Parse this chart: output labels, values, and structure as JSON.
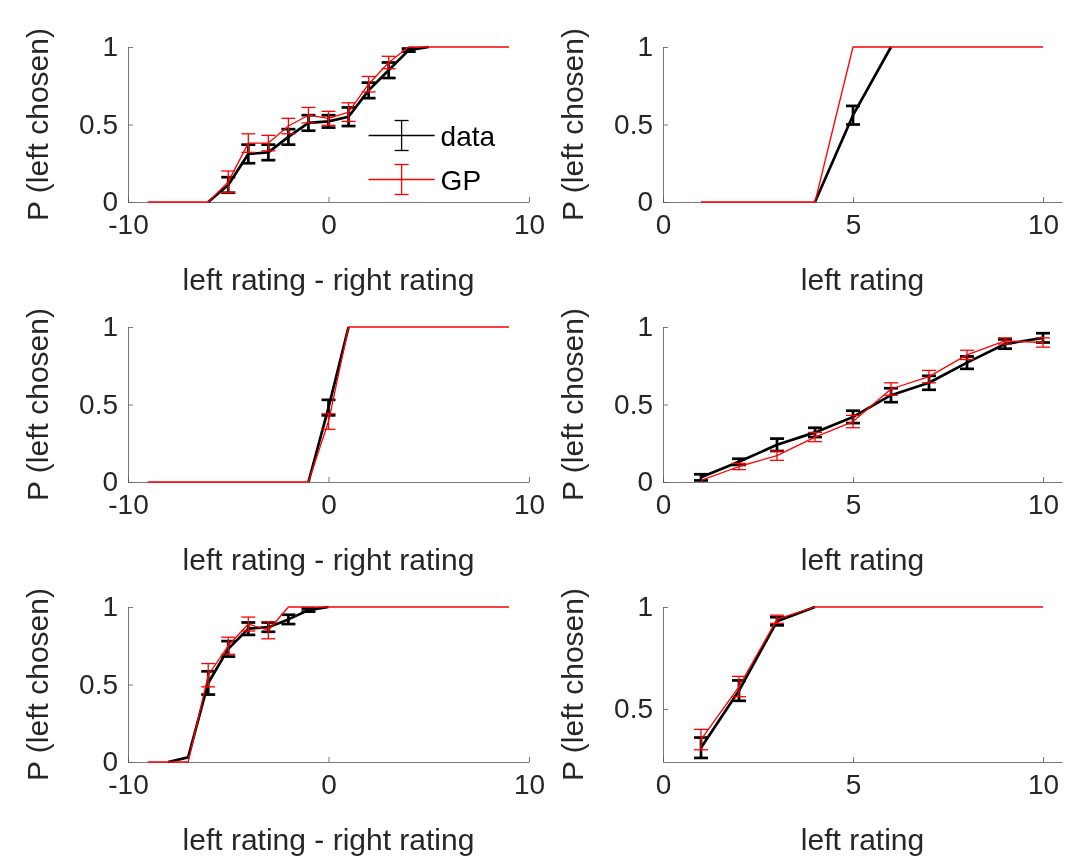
{
  "chart_data": [
    {
      "type": "line",
      "xlabel": "left rating - right rating",
      "ylabel": "P (left chosen)",
      "x": [
        -9,
        -8,
        -7,
        -6,
        -5,
        -4,
        -3,
        -2,
        -1,
        0,
        1,
        2,
        3,
        4,
        5,
        6,
        7,
        8,
        9
      ],
      "xlim": [
        -10,
        10
      ],
      "xticks": [
        -10,
        0,
        10
      ],
      "ylim": [
        0,
        1
      ],
      "yticks": [
        0,
        0.5,
        1
      ],
      "legend": "right",
      "marker": "none",
      "line_style": "solid",
      "series": [
        {
          "name": "data",
          "color": "#000000",
          "values": [
            null,
            null,
            null,
            0,
            0.11,
            0.31,
            0.32,
            0.42,
            0.51,
            0.52,
            0.55,
            0.72,
            0.85,
            0.98,
            1,
            null,
            null,
            null,
            null
          ],
          "errors": [
            null,
            null,
            null,
            null,
            0.05,
            0.06,
            0.05,
            0.05,
            0.05,
            0.04,
            0.06,
            0.05,
            0.05,
            0.01,
            null,
            null,
            null,
            null,
            null
          ]
        },
        {
          "name": "GP",
          "color": "#ff0000",
          "values": [
            0,
            0,
            0,
            0,
            0.13,
            0.38,
            0.38,
            0.49,
            0.56,
            0.54,
            0.58,
            0.76,
            0.9,
            1,
            1,
            1,
            1,
            1,
            1
          ],
          "errors": [
            null,
            null,
            null,
            null,
            0.07,
            0.06,
            0.05,
            0.05,
            0.05,
            0.045,
            0.06,
            0.05,
            0.04,
            null,
            null,
            null,
            null,
            null,
            null
          ]
        }
      ]
    },
    {
      "type": "line",
      "xlabel": "left rating",
      "ylabel": "P (left chosen)",
      "x": [
        1,
        2,
        3,
        4,
        5,
        6,
        7,
        8,
        9,
        10
      ],
      "xlim": [
        0,
        10.5
      ],
      "xticks": [
        0,
        5,
        10
      ],
      "ylim": [
        0,
        1
      ],
      "yticks": [
        0,
        0.5,
        1
      ],
      "marker": "none",
      "line_style": "solid",
      "series": [
        {
          "color": "#000000",
          "values": [
            null,
            null,
            null,
            0,
            0.56,
            1,
            null,
            null,
            null,
            null
          ],
          "errors": [
            null,
            null,
            null,
            null,
            0.06,
            null,
            null,
            null,
            null,
            null
          ]
        },
        {
          "color": "#ff0000",
          "values": [
            0,
            0,
            0,
            0,
            1,
            1,
            1,
            1,
            1,
            1
          ]
        }
      ]
    },
    {
      "type": "line",
      "xlabel": "left rating - right rating",
      "ylabel": "P (left chosen)",
      "x": [
        -9,
        -8,
        -7,
        -6,
        -5,
        -4,
        -3,
        -2,
        -1,
        0,
        1,
        2,
        3,
        4,
        5,
        6,
        7,
        8,
        9
      ],
      "xlim": [
        -10,
        10
      ],
      "xticks": [
        -10,
        0,
        10
      ],
      "ylim": [
        0,
        1
      ],
      "yticks": [
        0,
        0.5,
        1
      ],
      "marker": "none",
      "line_style": "solid",
      "series": [
        {
          "color": "#000000",
          "values": [
            null,
            null,
            null,
            null,
            null,
            null,
            null,
            null,
            0,
            0.48,
            1,
            null,
            null,
            null,
            null,
            null,
            null,
            null,
            null
          ],
          "errors": [
            null,
            null,
            null,
            null,
            null,
            null,
            null,
            null,
            null,
            0.05,
            null,
            null,
            null,
            null,
            null,
            null,
            null,
            null,
            null
          ]
        },
        {
          "color": "#ff0000",
          "values": [
            0,
            0,
            0,
            0,
            0,
            0,
            0,
            0,
            0,
            0.39,
            1,
            1,
            1,
            1,
            1,
            1,
            1,
            1,
            1
          ],
          "errors": [
            null,
            null,
            null,
            null,
            null,
            null,
            null,
            null,
            null,
            0.05,
            null,
            null,
            null,
            null,
            null,
            null,
            null,
            null,
            null
          ]
        }
      ]
    },
    {
      "type": "line",
      "xlabel": "left rating",
      "ylabel": "P (left chosen)",
      "x": [
        1,
        2,
        3,
        4,
        5,
        6,
        7,
        8,
        9,
        10
      ],
      "xlim": [
        0,
        10.5
      ],
      "xticks": [
        0,
        5,
        10
      ],
      "ylim": [
        0,
        1
      ],
      "yticks": [
        0,
        0.5,
        1
      ],
      "marker": "none",
      "line_style": "solid",
      "series": [
        {
          "color": "#000000",
          "values": [
            0.03,
            0.13,
            0.24,
            0.32,
            0.42,
            0.56,
            0.64,
            0.77,
            0.89,
            0.93
          ],
          "errors": [
            0.02,
            0.02,
            0.04,
            0.03,
            0.04,
            0.045,
            0.045,
            0.04,
            0.03,
            0.03
          ]
        },
        {
          "color": "#ff0000",
          "values": [
            0.01,
            0.1,
            0.17,
            0.29,
            0.39,
            0.6,
            0.68,
            0.82,
            0.91,
            0.9
          ],
          "errors": [
            null,
            0.02,
            0.03,
            0.03,
            0.04,
            0.04,
            0.04,
            0.03,
            0.02,
            0.03
          ]
        }
      ]
    },
    {
      "type": "line",
      "xlabel": "left rating - right rating",
      "ylabel": "P (left chosen)",
      "x": [
        -9,
        -8,
        -7,
        -6,
        -5,
        -4,
        -3,
        -2,
        -1,
        0,
        1,
        2,
        3,
        4,
        5,
        6,
        7,
        8,
        9
      ],
      "xlim": [
        -10,
        10
      ],
      "xticks": [
        -10,
        0,
        10
      ],
      "ylim": [
        0,
        1
      ],
      "yticks": [
        0,
        0.5,
        1
      ],
      "marker": "none",
      "line_style": "solid",
      "series": [
        {
          "color": "#000000",
          "values": [
            null,
            0,
            0.03,
            0.51,
            0.73,
            0.86,
            0.87,
            0.92,
            0.98,
            1,
            null,
            null,
            null,
            null,
            null,
            null,
            null,
            null,
            null
          ],
          "errors": [
            null,
            null,
            null,
            0.075,
            0.05,
            0.04,
            0.03,
            0.03,
            0.01,
            null,
            null,
            null,
            null,
            null,
            null,
            null,
            null,
            null,
            null
          ]
        },
        {
          "color": "#ff0000",
          "values": [
            0,
            0,
            0,
            0.56,
            0.75,
            0.89,
            0.85,
            1,
            1,
            1,
            1,
            1,
            1,
            1,
            1,
            1,
            1,
            1,
            1
          ],
          "errors": [
            null,
            null,
            null,
            0.075,
            0.055,
            0.045,
            0.055,
            null,
            null,
            null,
            null,
            null,
            null,
            null,
            null,
            null,
            null,
            null,
            null
          ]
        }
      ]
    },
    {
      "type": "line",
      "xlabel": "left rating",
      "ylabel": "P (left chosen)",
      "x": [
        1,
        2,
        3,
        4,
        5,
        6,
        7,
        8,
        9,
        10
      ],
      "xlim": [
        0,
        10.5
      ],
      "xticks": [
        0,
        5,
        10
      ],
      "ylim": [
        0.24,
        1
      ],
      "yticks": [
        0.5,
        1
      ],
      "marker": "none",
      "line_style": "solid",
      "series": [
        {
          "color": "#000000",
          "values": [
            0.31,
            0.59,
            0.93,
            1,
            null,
            null,
            null,
            null,
            null,
            null
          ],
          "errors": [
            0.05,
            0.05,
            0.02,
            null,
            null,
            null,
            null,
            null,
            null,
            null
          ]
        },
        {
          "color": "#ff0000",
          "values": [
            0.35,
            0.61,
            0.94,
            1,
            1,
            1,
            1,
            1,
            1,
            1
          ],
          "errors": [
            0.05,
            0.05,
            0.02,
            null,
            null,
            null,
            null,
            null,
            null,
            null
          ]
        }
      ]
    }
  ]
}
